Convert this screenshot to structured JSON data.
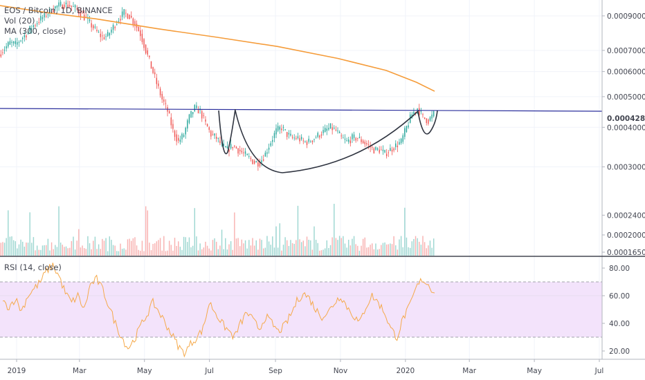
{
  "legend": {
    "symbol": "EOS / Bitcoin, 1D, BINANCE",
    "volume": "Vol (20)",
    "ma": "MA (300, close)",
    "rsi": "RSI (14, close)"
  },
  "colors": {
    "up": "#26a69a",
    "down": "#ef5350",
    "ma": "#f59c3a",
    "pattern": "#2f3440",
    "neckline": "#2a2e9c",
    "rsi": "#f5a94a",
    "rsi_band": "#f3e3fb",
    "price_tag": "#434651"
  },
  "chart_data": [
    {
      "type": "candlestick",
      "ylim": [
        0.00026,
        0.00101
      ],
      "log_scale": true,
      "price_ticks": [
        "0.0009000",
        "0.0007000",
        "0.0006000",
        "0.0005000",
        "0.0004000",
        "0.0003000"
      ],
      "last_price": "0.0004281",
      "neckline": [
        {
          "date": "2019-01-01",
          "price": 0.000478
        },
        {
          "date": "2020-07-15",
          "price": 0.000465
        }
      ],
      "ma300": [
        [
          0,
          0.00097
        ],
        [
          40,
          0.00092
        ],
        [
          80,
          0.00088
        ],
        [
          130,
          0.00082
        ],
        [
          180,
          0.00077
        ],
        [
          230,
          0.00072
        ],
        [
          280,
          0.00066
        ],
        [
          320,
          0.000605
        ],
        [
          345,
          0.000555
        ],
        [
          360,
          0.00052
        ]
      ],
      "close": [
        0.00068,
        0.00071,
        0.00074,
        0.00073,
        0.00076,
        0.00079,
        0.00083,
        0.00086,
        0.00089,
        0.00092,
        0.00095,
        0.00097,
        0.00098,
        0.00097,
        0.00095,
        0.00092,
        0.00088,
        0.00084,
        0.0008,
        0.00077,
        0.00078,
        0.00083,
        0.00088,
        0.00092,
        0.0009,
        0.00085,
        0.00079,
        0.0007,
        0.00062,
        0.00055,
        0.00049,
        0.00045,
        0.00039,
        0.00036,
        0.00038,
        0.00043,
        0.00046,
        0.00045,
        0.00041,
        0.00038,
        0.00037,
        0.00035,
        0.00034,
        0.00035,
        0.00034,
        0.00033,
        0.00032,
        0.00031,
        0.00031,
        0.00033,
        0.00036,
        0.00039,
        0.0004,
        0.00038,
        0.00037,
        0.00037,
        0.00036,
        0.00036,
        0.00037,
        0.00038,
        0.00039,
        0.0004,
        0.00039,
        0.00037,
        0.00036,
        0.00037,
        0.00037,
        0.00036,
        0.00035,
        0.00034,
        0.00034,
        0.00033,
        0.00034,
        0.00035,
        0.00036,
        0.0004,
        0.00044,
        0.00046,
        0.00043,
        0.00042,
        0.00044
      ]
    },
    {
      "type": "bar",
      "title": "Vol (20)",
      "ylim": [
        0.000158,
        0.00027
      ],
      "volume_ticks": [
        "0.0002400",
        "0.0002000",
        "0.0001650"
      ]
    },
    {
      "type": "line",
      "title": "RSI (14, close)",
      "ylim": [
        14,
        88
      ],
      "bands": [
        30,
        70
      ],
      "y_ticks": [
        "80.00",
        "60.00",
        "40.00",
        "20.00"
      ],
      "values": [
        55,
        52,
        58,
        49,
        60,
        65,
        70,
        78,
        82,
        74,
        62,
        55,
        60,
        50,
        68,
        72,
        64,
        52,
        40,
        30,
        22,
        28,
        38,
        46,
        55,
        48,
        40,
        32,
        24,
        18,
        25,
        30,
        36,
        55,
        48,
        40,
        35,
        30,
        40,
        48,
        42,
        36,
        45,
        40,
        34,
        38,
        46,
        56,
        62,
        58,
        50,
        45,
        48,
        55,
        60,
        52,
        46,
        40,
        52,
        60,
        55,
        48,
        36,
        30,
        44,
        52,
        65,
        72,
        68,
        62
      ]
    }
  ],
  "x_axis": {
    "ticks": [
      {
        "date": "2019-01-01",
        "label": "2019"
      },
      {
        "date": "2019-03-01",
        "label": "Mar"
      },
      {
        "date": "2019-05-01",
        "label": "May"
      },
      {
        "date": "2019-07-01",
        "label": "Jul"
      },
      {
        "date": "2019-09-01",
        "label": "Sep"
      },
      {
        "date": "2019-11-01",
        "label": "Nov"
      },
      {
        "date": "2020-01-01",
        "label": "2020"
      },
      {
        "date": "2020-03-01",
        "label": "Mar"
      },
      {
        "date": "2020-05-01",
        "label": "May"
      },
      {
        "date": "2020-07-01",
        "label": "Jul"
      }
    ]
  }
}
